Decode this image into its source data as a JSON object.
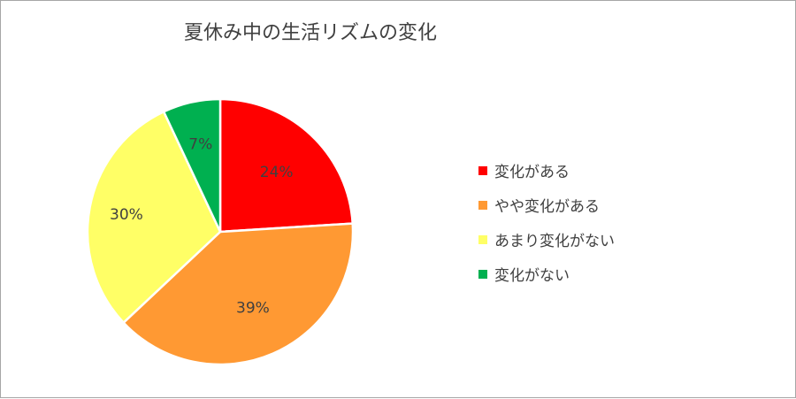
{
  "colors": [
    "#ff0000",
    "#ff9933",
    "#ffff66",
    "#00b050"
  ],
  "chart_data": {
    "type": "pie",
    "title": "夏休み中の生活リズムの変化",
    "categories": [
      "変化がある",
      "やや変化がある",
      "あまり変化がない",
      "変化がない"
    ],
    "values": [
      24,
      39,
      30,
      7
    ],
    "labels": [
      "24%",
      "39%",
      "30%",
      "7%"
    ],
    "start": "12 o'clock, clockwise",
    "legend_position": "right"
  }
}
